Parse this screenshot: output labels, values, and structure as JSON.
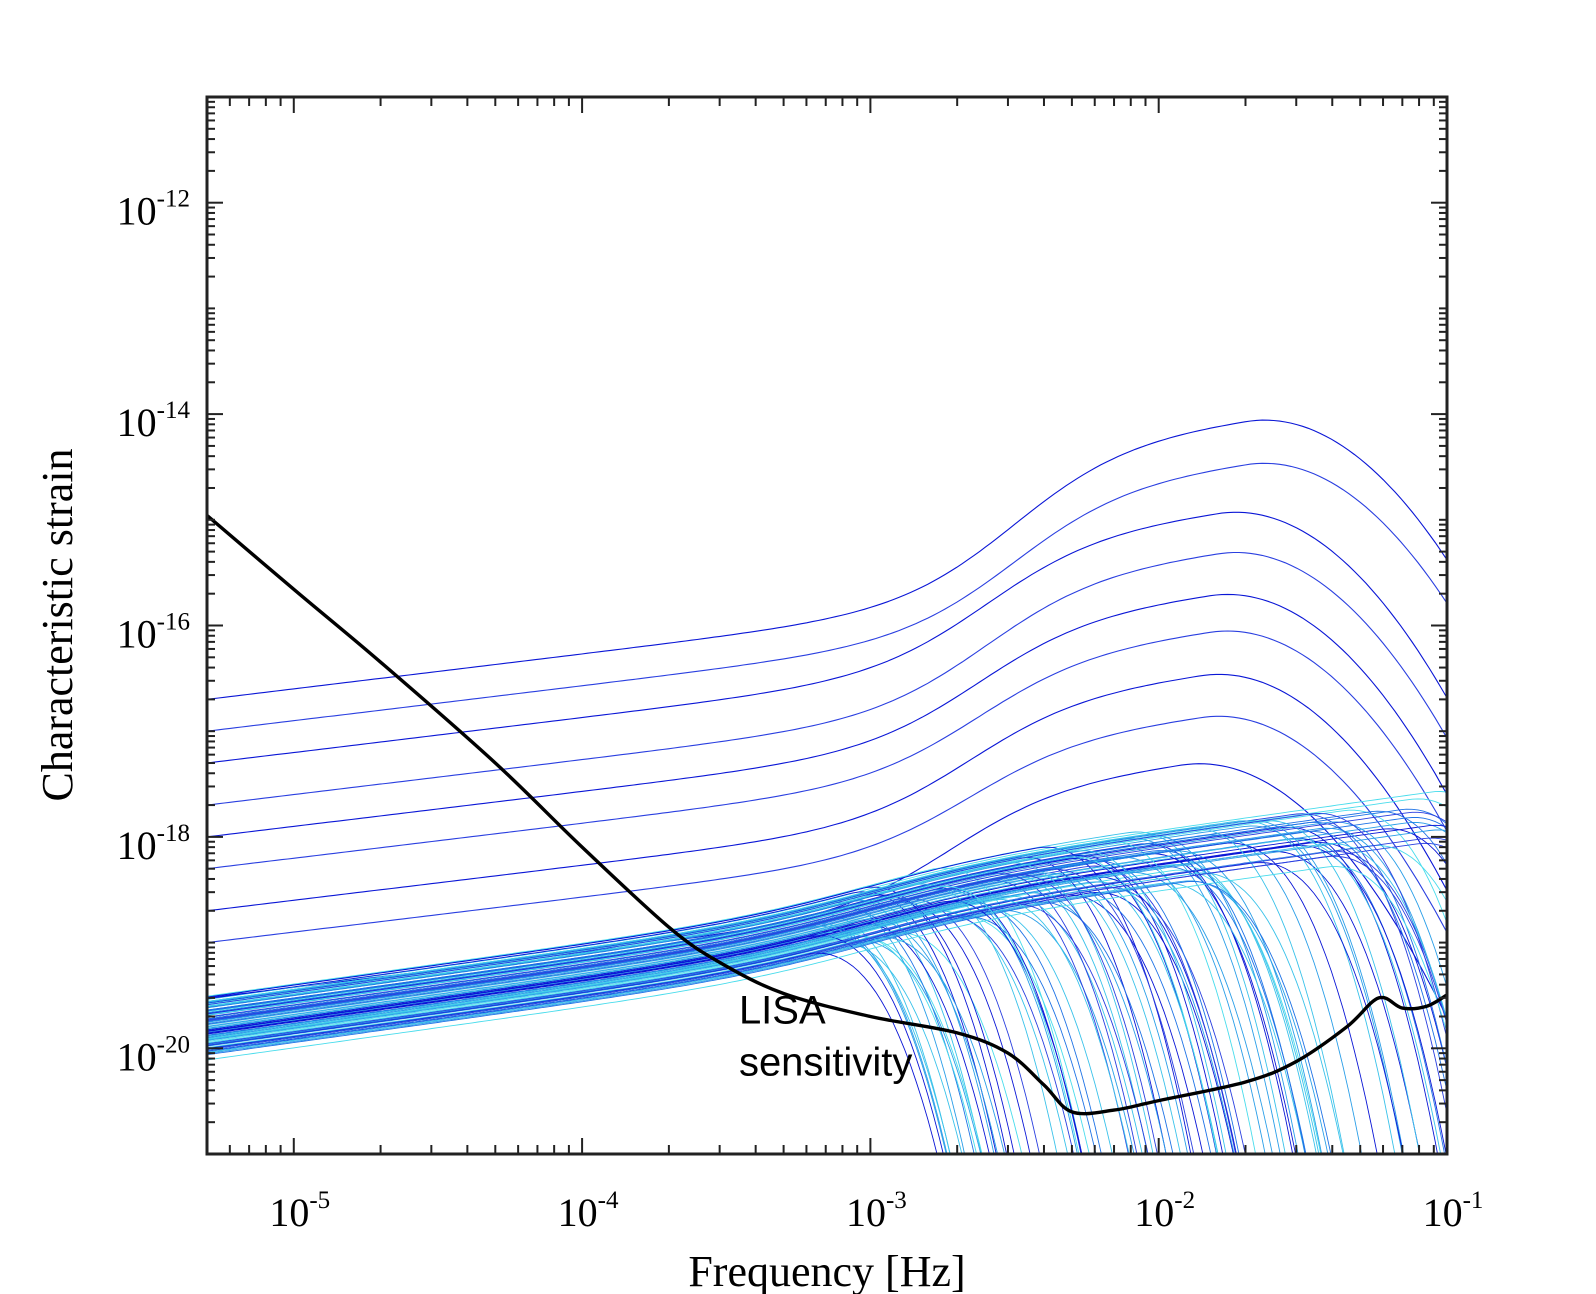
{
  "chart_data": {
    "type": "line",
    "title": "",
    "xlabel": "Frequency [Hz]",
    "ylabel": "Characteristic strain",
    "xscale": "log",
    "yscale": "log",
    "xlim": [
      5e-06,
      0.1
    ],
    "ylim": [
      1e-21,
      1e-11
    ],
    "grid": false,
    "x_ticks": [
      {
        "base": "10",
        "exp": "-5",
        "value": 1e-05
      },
      {
        "base": "10",
        "exp": "-4",
        "value": 0.0001
      },
      {
        "base": "10",
        "exp": "-3",
        "value": 0.001
      },
      {
        "base": "10",
        "exp": "-2",
        "value": 0.01
      },
      {
        "base": "10",
        "exp": "-1",
        "value": 0.1
      }
    ],
    "y_ticks": [
      {
        "base": "10",
        "exp": "-12",
        "value": 1e-12
      },
      {
        "base": "10",
        "exp": "-14",
        "value": 1e-14
      },
      {
        "base": "10",
        "exp": "-16",
        "value": 1e-16
      },
      {
        "base": "10",
        "exp": "-18",
        "value": 1e-18
      },
      {
        "base": "10",
        "exp": "-20",
        "value": 1e-20
      }
    ],
    "annotation": {
      "line1": "LISA",
      "line2": "sensitivity",
      "x": 0.00035,
      "y": 1.5e-20
    },
    "sensitivity_curve": {
      "name": "LISA sensitivity",
      "color": "#000000",
      "points": [
        [
          5e-06,
          1.1e-15
        ],
        [
          1e-05,
          2.2e-16
        ],
        [
          2e-05,
          4.5e-17
        ],
        [
          5e-05,
          5e-18
        ],
        [
          0.0001,
          8e-19
        ],
        [
          0.0002,
          1.4e-19
        ],
        [
          0.0003,
          6.5e-20
        ],
        [
          0.0005,
          3.3e-20
        ],
        [
          0.001,
          2e-20
        ],
        [
          0.002,
          1.4e-20
        ],
        [
          0.003,
          9e-21
        ],
        [
          0.004,
          4.5e-21
        ],
        [
          0.005,
          2.5e-21
        ],
        [
          0.007,
          2.6e-21
        ],
        [
          0.01,
          3.2e-21
        ],
        [
          0.02,
          4.8e-21
        ],
        [
          0.03,
          7.5e-21
        ],
        [
          0.045,
          1.6e-20
        ],
        [
          0.058,
          3e-20
        ],
        [
          0.07,
          2.4e-20
        ],
        [
          0.085,
          2.5e-20
        ],
        [
          0.1,
          3.2e-20
        ]
      ]
    },
    "colormap": [
      "#0a16d6",
      "#2a3fe0",
      "#1f73e6",
      "#2a9ee8",
      "#3ac2ea",
      "#49dcec"
    ],
    "signal_curves": {
      "count": 120,
      "description": "Gravitational-wave characteristic-strain tracks, rising as a power law then peaking and cutting off between ~5e-4 and 0.1 Hz",
      "reference_tracks": [
        {
          "h_at_5e-6": 2e-17,
          "peak_f": 0.02,
          "peak_h": 9e-15
        },
        {
          "h_at_5e-6": 1e-17,
          "peak_f": 0.02,
          "peak_h": 3.5e-15
        },
        {
          "h_at_5e-6": 5e-18,
          "peak_f": 0.016,
          "peak_h": 1.2e-15
        },
        {
          "h_at_5e-6": 2e-18,
          "peak_f": 0.016,
          "peak_h": 5e-16
        },
        {
          "h_at_5e-6": 1e-18,
          "peak_f": 0.015,
          "peak_h": 2e-16
        },
        {
          "h_at_5e-6": 5e-19,
          "peak_f": 0.015,
          "peak_h": 9e-17
        },
        {
          "h_at_5e-6": 2e-19,
          "peak_f": 0.014,
          "peak_h": 3.5e-17
        },
        {
          "h_at_5e-6": 1e-19,
          "peak_f": 0.014,
          "peak_h": 1.4e-17
        },
        {
          "h_at_5e-6": 3e-20,
          "peak_f": 0.012,
          "peak_h": 5e-18
        }
      ]
    }
  }
}
